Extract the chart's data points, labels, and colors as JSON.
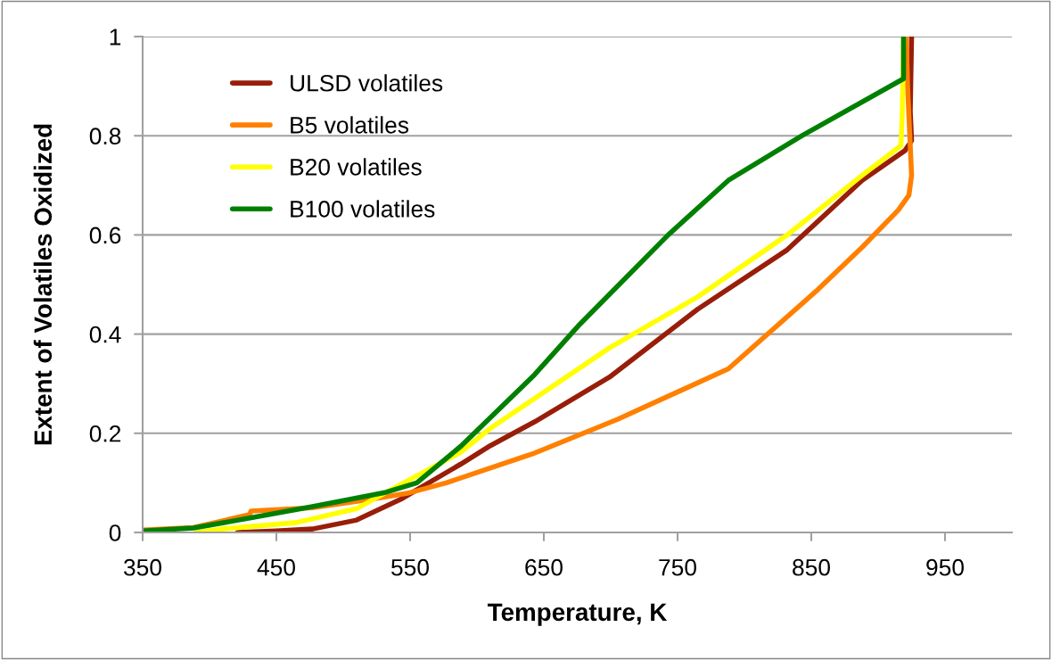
{
  "chart_data": {
    "type": "line",
    "xlabel": "Temperature, K",
    "ylabel": "Extent of Volatiles Oxidized",
    "xlim": [
      350,
      1000
    ],
    "xticks": [
      350,
      450,
      550,
      650,
      750,
      850,
      950
    ],
    "ylim": [
      0,
      1
    ],
    "yticks": [
      0,
      0.2,
      0.4,
      0.6,
      0.8,
      1
    ],
    "grid": "y",
    "legend": "top left",
    "marker": "none",
    "line_style": "solid",
    "series": [
      {
        "name": "ULSD volatiles",
        "color": "#981e0a",
        "x": [
          421,
          450,
          477,
          510,
          543,
          588,
          610,
          643,
          699,
          765,
          832,
          888,
          920,
          925,
          924,
          925
        ],
        "values": [
          0.0,
          0.003,
          0.007,
          0.025,
          0.067,
          0.138,
          0.175,
          0.223,
          0.313,
          0.45,
          0.57,
          0.71,
          0.77,
          0.79,
          0.85,
          1.0
        ]
      },
      {
        "name": "B5 volatiles",
        "color": "#ff8000",
        "x": [
          350,
          388,
          430,
          431,
          477,
          521,
          548,
          577,
          643,
          705,
          788,
          855,
          888,
          915,
          923,
          925,
          922,
          921
        ],
        "values": [
          0.005,
          0.01,
          0.036,
          0.043,
          0.05,
          0.067,
          0.079,
          0.1,
          0.16,
          0.228,
          0.33,
          0.49,
          0.575,
          0.65,
          0.68,
          0.72,
          0.9,
          1.0
        ]
      },
      {
        "name": "B20 volatiles",
        "color": "#ffff00",
        "x": [
          390,
          410,
          465,
          510,
          543,
          588,
          610,
          699,
          765,
          832,
          888,
          917,
          918,
          919
        ],
        "values": [
          0.0,
          0.007,
          0.02,
          0.048,
          0.097,
          0.162,
          0.21,
          0.372,
          0.475,
          0.6,
          0.72,
          0.78,
          0.84,
          1.0
        ]
      },
      {
        "name": "B100 volatiles",
        "color": "#008000",
        "x": [
          350,
          388,
          432,
          477,
          532,
          555,
          588,
          643,
          677,
          743,
          788,
          843,
          919,
          919
        ],
        "values": [
          0.003,
          0.009,
          0.03,
          0.052,
          0.081,
          0.1,
          0.174,
          0.318,
          0.42,
          0.6,
          0.71,
          0.8,
          0.915,
          1.0
        ]
      }
    ]
  }
}
